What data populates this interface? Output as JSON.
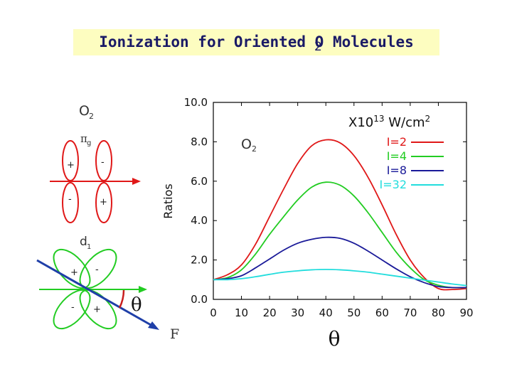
{
  "slide": {
    "title": "Ionization for Oriented O Molecules",
    "title_sub": "2"
  },
  "diagram": {
    "mol_top_label": "O",
    "mol_top_sub": "2",
    "orbital_top": "π",
    "orbital_top_sub": "g",
    "orbital_bottom": "d",
    "orbital_bottom_sub": "1",
    "sign_plus": "+",
    "sign_minus": "-",
    "theta_symbol": "θ",
    "field_label": "F"
  },
  "chart_data": {
    "type": "line",
    "title": "",
    "xlabel": "θ",
    "ylabel": "Ratios",
    "in_plot_label": "O",
    "in_plot_label_sub": "2",
    "units_prefix": "X10",
    "units_exp": "13",
    "units_suffix": " W/cm",
    "units_suffix_exp": "2",
    "xlim": [
      0,
      90
    ],
    "ylim": [
      0,
      10
    ],
    "x_ticks": [
      "0",
      "10",
      "20",
      "30",
      "40",
      "50",
      "60",
      "70",
      "80",
      "90"
    ],
    "y_ticks": [
      "0.0",
      "2.0",
      "4.0",
      "6.0",
      "8.0",
      "10.0"
    ],
    "x": [
      0,
      5,
      10,
      15,
      20,
      25,
      30,
      35,
      40,
      45,
      50,
      55,
      60,
      65,
      70,
      75,
      80,
      85,
      90
    ],
    "legend_position": "top-right",
    "series": [
      {
        "name": "I=2",
        "color": "#e01818",
        "values": [
          1.0,
          1.25,
          1.75,
          2.8,
          4.2,
          5.6,
          6.9,
          7.8,
          8.1,
          7.95,
          7.3,
          6.2,
          4.8,
          3.3,
          2.0,
          1.1,
          0.55,
          0.5,
          0.55
        ]
      },
      {
        "name": "I=4",
        "color": "#22cc22",
        "values": [
          1.0,
          1.1,
          1.5,
          2.3,
          3.3,
          4.2,
          5.05,
          5.7,
          5.95,
          5.8,
          5.25,
          4.4,
          3.4,
          2.4,
          1.6,
          1.0,
          0.72,
          0.6,
          0.6
        ]
      },
      {
        "name": "I=8",
        "color": "#1a1a99",
        "values": [
          1.0,
          1.05,
          1.2,
          1.6,
          2.05,
          2.5,
          2.85,
          3.05,
          3.15,
          3.1,
          2.85,
          2.45,
          2.0,
          1.55,
          1.15,
          0.85,
          0.65,
          0.6,
          0.6
        ]
      },
      {
        "name": "I=32",
        "color": "#22dddd",
        "values": [
          1.0,
          1.0,
          1.05,
          1.15,
          1.27,
          1.38,
          1.45,
          1.5,
          1.52,
          1.5,
          1.45,
          1.38,
          1.28,
          1.18,
          1.08,
          0.98,
          0.88,
          0.78,
          0.7
        ]
      }
    ]
  }
}
